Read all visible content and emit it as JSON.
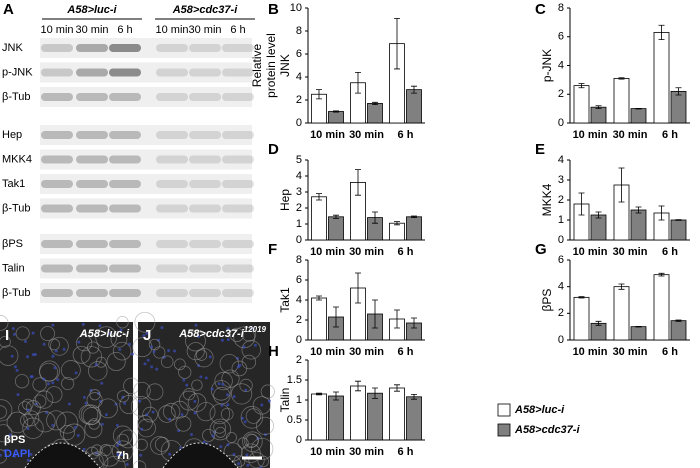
{
  "blot": {
    "label": "A",
    "groups": [
      "A58>luc-i",
      "A58>cdc37-i"
    ],
    "lanes": [
      "10 min",
      "30 min",
      "6 h",
      "10 min",
      "30 min",
      "6 h"
    ],
    "sections": [
      [
        "JNK",
        "p-JNK",
        "β-Tub"
      ],
      [
        "Hep",
        "MKK4",
        "Tak1",
        "β-Tub"
      ],
      [
        "βPS",
        "Talin",
        "β-Tub"
      ]
    ]
  },
  "images": [
    {
      "label": "I",
      "title": "A58>luc-i",
      "stains": [
        "βPS",
        "DAPI"
      ],
      "time": "7h"
    },
    {
      "label": "J",
      "title": "A58>cdc37-i",
      "superscript": "12019"
    }
  ],
  "legend": [
    {
      "name": "A58>luc-i",
      "color": "#ffffff"
    },
    {
      "name": "A58>cdc37-i",
      "color": "#808080"
    }
  ],
  "chart_data": [
    {
      "type": "bar",
      "label": "B",
      "ylabel": [
        "Relative",
        "protein level",
        "JNK"
      ],
      "categories": [
        "10 min",
        "30 min",
        "6 h"
      ],
      "ylim": [
        0,
        10
      ],
      "yticks": [
        0,
        2,
        4,
        6,
        8,
        10
      ],
      "series": [
        {
          "values": [
            2.5,
            3.5,
            6.9
          ],
          "errors": [
            0.4,
            0.9,
            2.2
          ]
        },
        {
          "values": [
            1.0,
            1.7,
            2.9
          ],
          "errors": [
            0.05,
            0.1,
            0.3
          ]
        }
      ]
    },
    {
      "type": "bar",
      "label": "C",
      "ylabel": [
        "p-JNK"
      ],
      "categories": [
        "10 min",
        "30 min",
        "6 h"
      ],
      "ylim": [
        0,
        8
      ],
      "yticks": [
        0,
        2,
        4,
        6,
        8
      ],
      "series": [
        {
          "values": [
            2.6,
            3.1,
            6.3
          ],
          "errors": [
            0.15,
            0.05,
            0.5
          ]
        },
        {
          "values": [
            1.1,
            1.0,
            2.2
          ],
          "errors": [
            0.1,
            0.02,
            0.25
          ]
        }
      ]
    },
    {
      "type": "bar",
      "label": "D",
      "ylabel": [
        "Hep"
      ],
      "categories": [
        "10 min",
        "30 min",
        "6 h"
      ],
      "ylim": [
        0,
        5
      ],
      "yticks": [
        0,
        1,
        2,
        3,
        4,
        5
      ],
      "series": [
        {
          "values": [
            2.7,
            3.6,
            1.05
          ],
          "errors": [
            0.2,
            0.8,
            0.1
          ]
        },
        {
          "values": [
            1.45,
            1.4,
            1.45
          ],
          "errors": [
            0.1,
            0.35,
            0.05
          ]
        }
      ]
    },
    {
      "type": "bar",
      "label": "E",
      "ylabel": [
        "MKK4"
      ],
      "categories": [
        "10 min",
        "30 min",
        "6 h"
      ],
      "ylim": [
        0,
        4
      ],
      "yticks": [
        0,
        1,
        2,
        3,
        4
      ],
      "series": [
        {
          "values": [
            1.8,
            2.75,
            1.35
          ],
          "errors": [
            0.55,
            0.85,
            0.35
          ]
        },
        {
          "values": [
            1.25,
            1.5,
            1.0
          ],
          "errors": [
            0.15,
            0.15,
            0.02
          ]
        }
      ]
    },
    {
      "type": "bar",
      "label": "F",
      "ylabel": [
        "Tak1"
      ],
      "categories": [
        "10 min",
        "30 min",
        "6 h"
      ],
      "ylim": [
        0,
        8
      ],
      "yticks": [
        0,
        2,
        4,
        6,
        8
      ],
      "series": [
        {
          "values": [
            4.2,
            5.2,
            2.1
          ],
          "errors": [
            0.2,
            1.5,
            0.9
          ]
        },
        {
          "values": [
            2.3,
            2.6,
            1.7
          ],
          "errors": [
            1.0,
            1.4,
            0.5
          ]
        }
      ]
    },
    {
      "type": "bar",
      "label": "G",
      "ylabel": [
        "βPS"
      ],
      "categories": [
        "10 min",
        "30 min",
        "6 h"
      ],
      "ylim": [
        0,
        6
      ],
      "yticks": [
        0,
        2,
        4,
        6
      ],
      "series": [
        {
          "values": [
            3.2,
            4.0,
            4.9
          ],
          "errors": [
            0.05,
            0.2,
            0.1
          ]
        },
        {
          "values": [
            1.25,
            1.0,
            1.45
          ],
          "errors": [
            0.15,
            0.02,
            0.05
          ]
        }
      ]
    },
    {
      "type": "bar",
      "label": "H",
      "ylabel": [
        "Talin"
      ],
      "categories": [
        "10 min",
        "30 min",
        "6 h"
      ],
      "ylim": [
        0,
        2
      ],
      "yticks": [
        0,
        0.5,
        1,
        1.5,
        2
      ],
      "series": [
        {
          "values": [
            1.15,
            1.35,
            1.3
          ],
          "errors": [
            0.02,
            0.12,
            0.08
          ]
        },
        {
          "values": [
            1.1,
            1.17,
            1.08
          ],
          "errors": [
            0.1,
            0.13,
            0.06
          ]
        }
      ]
    }
  ]
}
